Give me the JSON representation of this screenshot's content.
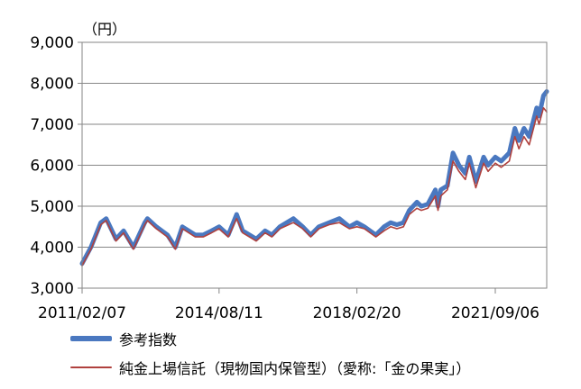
{
  "chart_data": {
    "type": "line",
    "unit_label": "（円）",
    "ylim": [
      3000,
      9000
    ],
    "yticks": [
      3000,
      4000,
      5000,
      6000,
      7000,
      8000,
      9000
    ],
    "ytick_labels": [
      "3,000",
      "4,000",
      "5,000",
      "6,000",
      "7,000",
      "8,000",
      "9,000"
    ],
    "xlim": [
      "2011-02-07",
      "2022-12-31"
    ],
    "xticks": [
      "2011-02-07",
      "2014-08-11",
      "2018-02-20",
      "2021-09-06"
    ],
    "xtick_labels": [
      "2011/02/07",
      "2014/08/11",
      "2018/02/20",
      "2021/09/06"
    ],
    "grid": true,
    "legend": "bottom",
    "series": [
      {
        "name": "参考指数",
        "color": "#4a78c0",
        "x": [
          "2011-02-07",
          "2011-05-01",
          "2011-08-01",
          "2011-09-20",
          "2011-12-20",
          "2012-03-01",
          "2012-06-01",
          "2012-09-15",
          "2012-10-10",
          "2013-01-01",
          "2013-04-15",
          "2013-06-28",
          "2013-09-01",
          "2013-12-31",
          "2014-03-15",
          "2014-06-01",
          "2014-08-11",
          "2014-11-05",
          "2015-01-22",
          "2015-03-20",
          "2015-07-24",
          "2015-10-15",
          "2015-12-17",
          "2016-03-01",
          "2016-07-06",
          "2016-10-01",
          "2016-12-15",
          "2017-03-01",
          "2017-06-06",
          "2017-09-08",
          "2017-12-12",
          "2018-02-20",
          "2018-05-01",
          "2018-08-16",
          "2018-11-01",
          "2019-01-01",
          "2019-03-01",
          "2019-05-01",
          "2019-06-25",
          "2019-09-04",
          "2019-10-15",
          "2019-12-15",
          "2020-02-24",
          "2020-03-19",
          "2020-04-14",
          "2020-06-15",
          "2020-08-06",
          "2020-10-01",
          "2020-11-30",
          "2021-01-06",
          "2021-03-08",
          "2021-05-20",
          "2021-07-01",
          "2021-09-06",
          "2021-11-01",
          "2022-01-15",
          "2022-03-08",
          "2022-04-15",
          "2022-06-01",
          "2022-07-20",
          "2022-09-28",
          "2022-10-20",
          "2022-12-01",
          "2022-12-31"
        ],
        "values": [
          3600,
          4000,
          4600,
          4700,
          4200,
          4400,
          4000,
          4600,
          4700,
          4500,
          4300,
          4000,
          4500,
          4300,
          4300,
          4400,
          4500,
          4300,
          4800,
          4400,
          4200,
          4400,
          4300,
          4500,
          4700,
          4500,
          4300,
          4500,
          4600,
          4700,
          4500,
          4600,
          4500,
          4300,
          4500,
          4600,
          4550,
          4600,
          4900,
          5100,
          5000,
          5050,
          5400,
          5000,
          5400,
          5500,
          6300,
          6000,
          5800,
          6200,
          5600,
          6200,
          6000,
          6200,
          6100,
          6300,
          6900,
          6600,
          6900,
          6700,
          7400,
          7200,
          7700,
          7800
        ]
      },
      {
        "name": "純金上場信託（現物国内保管型）（愛称:「金の果実」）",
        "color": "#b0413e",
        "x": [
          "2011-02-07",
          "2011-05-01",
          "2011-08-01",
          "2011-09-20",
          "2011-12-20",
          "2012-03-01",
          "2012-06-01",
          "2012-09-15",
          "2012-10-10",
          "2013-01-01",
          "2013-04-15",
          "2013-06-28",
          "2013-09-01",
          "2013-12-31",
          "2014-03-15",
          "2014-06-01",
          "2014-08-11",
          "2014-11-05",
          "2015-01-22",
          "2015-03-20",
          "2015-07-24",
          "2015-10-15",
          "2015-12-17",
          "2016-03-01",
          "2016-07-06",
          "2016-10-01",
          "2016-12-15",
          "2017-03-01",
          "2017-06-06",
          "2017-09-08",
          "2017-12-12",
          "2018-02-20",
          "2018-05-01",
          "2018-08-16",
          "2018-11-01",
          "2019-01-01",
          "2019-03-01",
          "2019-05-01",
          "2019-06-25",
          "2019-09-04",
          "2019-10-15",
          "2019-12-15",
          "2020-02-24",
          "2020-03-19",
          "2020-04-14",
          "2020-06-15",
          "2020-08-06",
          "2020-10-01",
          "2020-11-30",
          "2021-01-06",
          "2021-03-08",
          "2021-05-20",
          "2021-07-01",
          "2021-09-06",
          "2021-11-01",
          "2022-01-15",
          "2022-03-08",
          "2022-04-15",
          "2022-06-01",
          "2022-07-20",
          "2022-09-28",
          "2022-10-20",
          "2022-12-01",
          "2022-12-31"
        ],
        "values": [
          3550,
          3950,
          4550,
          4650,
          4150,
          4350,
          3950,
          4550,
          4650,
          4450,
          4250,
          3950,
          4450,
          4250,
          4250,
          4350,
          4450,
          4250,
          4700,
          4350,
          4150,
          4350,
          4250,
          4450,
          4600,
          4450,
          4250,
          4450,
          4550,
          4600,
          4450,
          4500,
          4450,
          4250,
          4400,
          4500,
          4450,
          4500,
          4800,
          4950,
          4900,
          4950,
          5250,
          4900,
          5250,
          5400,
          6100,
          5850,
          5650,
          6050,
          5450,
          6050,
          5850,
          6050,
          5950,
          6100,
          6700,
          6400,
          6700,
          6500,
          7200,
          7000,
          7400,
          7300
        ]
      }
    ]
  }
}
